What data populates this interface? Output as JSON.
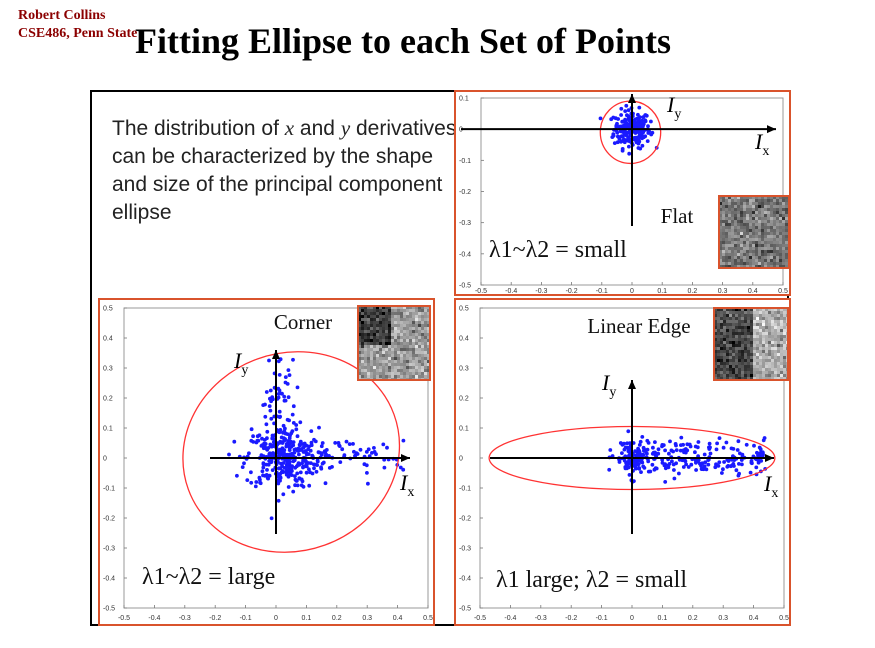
{
  "header": {
    "author": "Robert Collins",
    "course": "CSE486, Penn State",
    "title": "Fitting Ellipse to each Set of Points"
  },
  "description": {
    "prefix": "The distribution of ",
    "var_x": "x",
    "mid": " and ",
    "var_y": "y",
    "rest": "derivatives can be characterized by the shape and size of the principal component ellipse"
  },
  "colors": {
    "points": "#1a1aff",
    "ellipse": "#ff3333",
    "panel_border": "#d9532c",
    "author": "#8b0000"
  },
  "panels": {
    "flat": {
      "label": "Flat",
      "eigen": "λ1~λ2 = small"
    },
    "corner": {
      "label": "Corner",
      "eigen": "λ1~λ2 = large"
    },
    "edge": {
      "label": "Linear Edge",
      "eigen": "λ1 large; λ2 = small"
    }
  },
  "axes": {
    "x_label": "I",
    "x_sub": "x",
    "y_label": "I",
    "y_sub": "y"
  },
  "chart_data": [
    {
      "type": "scatter",
      "name": "flat",
      "xlim": [
        -0.5,
        0.5
      ],
      "ylim": [
        -0.5,
        0.1
      ],
      "xticks": [
        "-0.5",
        "-0.4",
        "-0.3",
        "-0.2",
        "-0.1",
        "0",
        "0.1",
        "0.2",
        "0.3",
        "0.4",
        "0.5"
      ],
      "yticks": [
        "0.1",
        "0",
        "-0.1",
        "-0.2",
        "-0.3",
        "-0.4",
        "-0.5"
      ],
      "cluster": {
        "cx": 0.0,
        "cy": 0.0,
        "sx": 0.03,
        "sy": 0.03,
        "n": 220
      },
      "ellipse": {
        "cx": -0.005,
        "cy": -0.01,
        "rx": 0.1,
        "ry": 0.1
      }
    },
    {
      "type": "scatter",
      "name": "corner",
      "xlim": [
        -0.5,
        0.5
      ],
      "ylim": [
        -0.5,
        0.5
      ],
      "xticks": [
        "-0.5",
        "-0.4",
        "-0.3",
        "-0.2",
        "-0.1",
        "0",
        "0.1",
        "0.2",
        "0.3",
        "0.4",
        "0.5"
      ],
      "yticks": [
        "0.5",
        "0.4",
        "0.3",
        "0.2",
        "0.1",
        "0",
        "-0.1",
        "-0.2",
        "-0.3",
        "-0.4",
        "-0.5"
      ],
      "cluster": {
        "cx": 0.02,
        "cy": 0.0,
        "sx": 0.06,
        "sy": 0.05,
        "n": 300
      },
      "tail_x": {
        "from": 0.05,
        "to": 0.42,
        "n": 70
      },
      "tail_y": {
        "from": 0.05,
        "to": 0.33,
        "n": 60
      },
      "ellipse": {
        "cx": 0.05,
        "cy": 0.02,
        "rx": 0.36,
        "ry": 0.33,
        "angle": -20
      }
    },
    {
      "type": "scatter",
      "name": "edge",
      "xlim": [
        -0.5,
        0.5
      ],
      "ylim": [
        -0.5,
        0.5
      ],
      "xticks": [
        "-0.5",
        "-0.4",
        "-0.3",
        "-0.2",
        "-0.1",
        "0",
        "0.1",
        "0.2",
        "0.3",
        "0.4",
        "0.5"
      ],
      "yticks": [
        "0.5",
        "0.4",
        "0.3",
        "0.2",
        "0.1",
        "0",
        "-0.1",
        "-0.2",
        "-0.3",
        "-0.4",
        "-0.5"
      ],
      "cluster": {
        "cx": 0.0,
        "cy": 0.0,
        "sx": 0.03,
        "sy": 0.03,
        "n": 120
      },
      "tail_x": {
        "from": 0.03,
        "to": 0.44,
        "n": 180,
        "sy": 0.03
      },
      "ellipse": {
        "cx": 0.0,
        "cy": 0.0,
        "rx": 0.47,
        "ry": 0.105,
        "angle": 0
      }
    }
  ]
}
